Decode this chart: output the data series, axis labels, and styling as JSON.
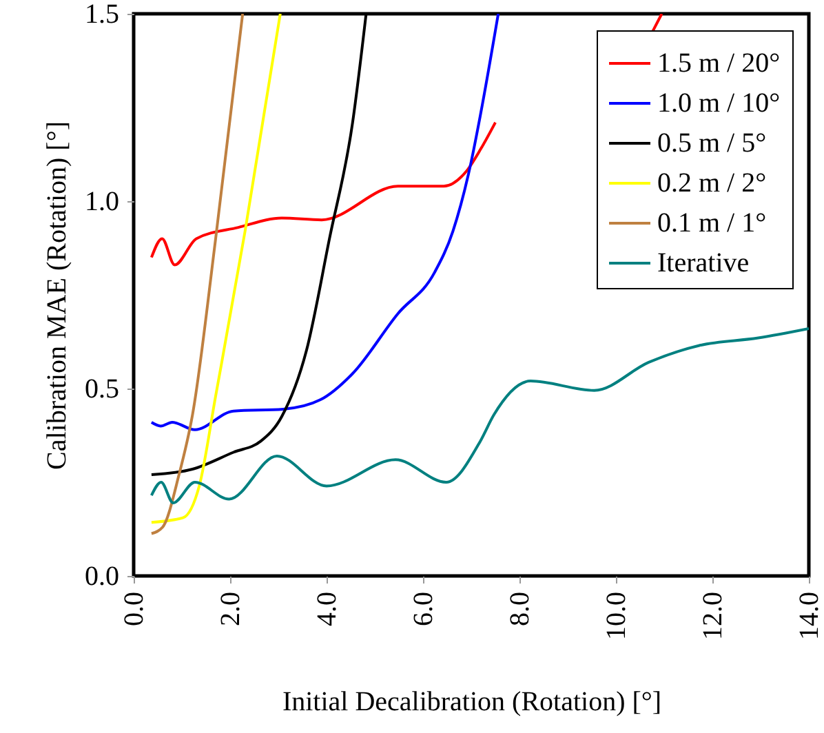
{
  "chart_data": {
    "type": "line",
    "xlabel": "Initial Decalibration (Rotation) [°]",
    "ylabel": "Calibration MAE (Rotation) [°]",
    "xlim": [
      0,
      14
    ],
    "ylim": [
      0,
      1.5
    ],
    "xticks": [
      {
        "value": 0,
        "label": "0.0"
      },
      {
        "value": 2,
        "label": "2.0"
      },
      {
        "value": 4,
        "label": "4.0"
      },
      {
        "value": 6,
        "label": "6.0"
      },
      {
        "value": 8,
        "label": "8.0"
      },
      {
        "value": 10,
        "label": "10.0"
      },
      {
        "value": 12,
        "label": "12.0"
      },
      {
        "value": 14,
        "label": "14.0"
      }
    ],
    "yticks": [
      {
        "value": 0,
        "label": "0.0"
      },
      {
        "value": 0.5,
        "label": "0.5"
      },
      {
        "value": 1,
        "label": "1.0"
      },
      {
        "value": 1.5,
        "label": "1.5"
      }
    ],
    "grid": false,
    "legend": "top right",
    "marker": "none",
    "line_style": "solid",
    "series": [
      {
        "name": "1.5 m / 20°",
        "color": "#ff0000",
        "x": [
          0.37,
          0.59,
          0.85,
          1.3,
          2.17,
          3.07,
          3.9,
          5.48,
          6.43,
          6.9,
          7.2,
          7.5,
          9.0,
          10.75,
          10.95
        ],
        "values": [
          0.85,
          0.9,
          0.83,
          0.9,
          0.93,
          0.955,
          0.95,
          1.04,
          1.04,
          1.08,
          1.14,
          1.21,
          null,
          1.45,
          1.5
        ]
      },
      {
        "name": "1.0 m / 10°",
        "color": "#0000ff",
        "x": [
          0.37,
          0.56,
          0.8,
          1.27,
          2.07,
          3.1,
          3.87,
          4.54,
          5.48,
          6.24,
          6.62,
          6.99,
          7.19,
          7.56
        ],
        "values": [
          0.41,
          0.4,
          0.41,
          0.39,
          0.44,
          0.445,
          0.47,
          0.54,
          0.7,
          0.81,
          0.92,
          1.1,
          1.23,
          1.5
        ]
      },
      {
        "name": "0.5 m / 5°",
        "color": "#000000",
        "x": [
          0.37,
          1.22,
          2.07,
          2.64,
          3.07,
          3.58,
          4.06,
          4.54,
          4.82
        ],
        "values": [
          0.27,
          0.285,
          0.33,
          0.36,
          0.425,
          0.6,
          0.9,
          1.21,
          1.5
        ]
      },
      {
        "name": "0.2 m / 2°",
        "color": "#ffff00",
        "x": [
          0.37,
          1.02,
          1.36,
          1.7,
          2.31,
          3.04
        ],
        "values": [
          0.143,
          0.155,
          0.24,
          0.48,
          0.92,
          1.5
        ]
      },
      {
        "name": "0.1 m / 1°",
        "color": "#bf8040",
        "x": [
          0.37,
          0.6,
          0.94,
          1.22,
          1.7,
          2.26
        ],
        "values": [
          0.113,
          0.13,
          0.27,
          0.43,
          0.9,
          1.5
        ]
      },
      {
        "name": "Iterative",
        "color": "#008080",
        "x": [
          0.37,
          0.57,
          0.82,
          1.27,
          1.98,
          2.97,
          4.0,
          5.43,
          6.48,
          7.19,
          7.47,
          8.23,
          9.55,
          10.68,
          11.73,
          12.95,
          14.0
        ],
        "values": [
          0.215,
          0.25,
          0.195,
          0.25,
          0.205,
          0.32,
          0.24,
          0.31,
          0.25,
          0.36,
          0.43,
          0.52,
          0.495,
          0.57,
          0.615,
          0.635,
          0.66
        ]
      }
    ]
  }
}
